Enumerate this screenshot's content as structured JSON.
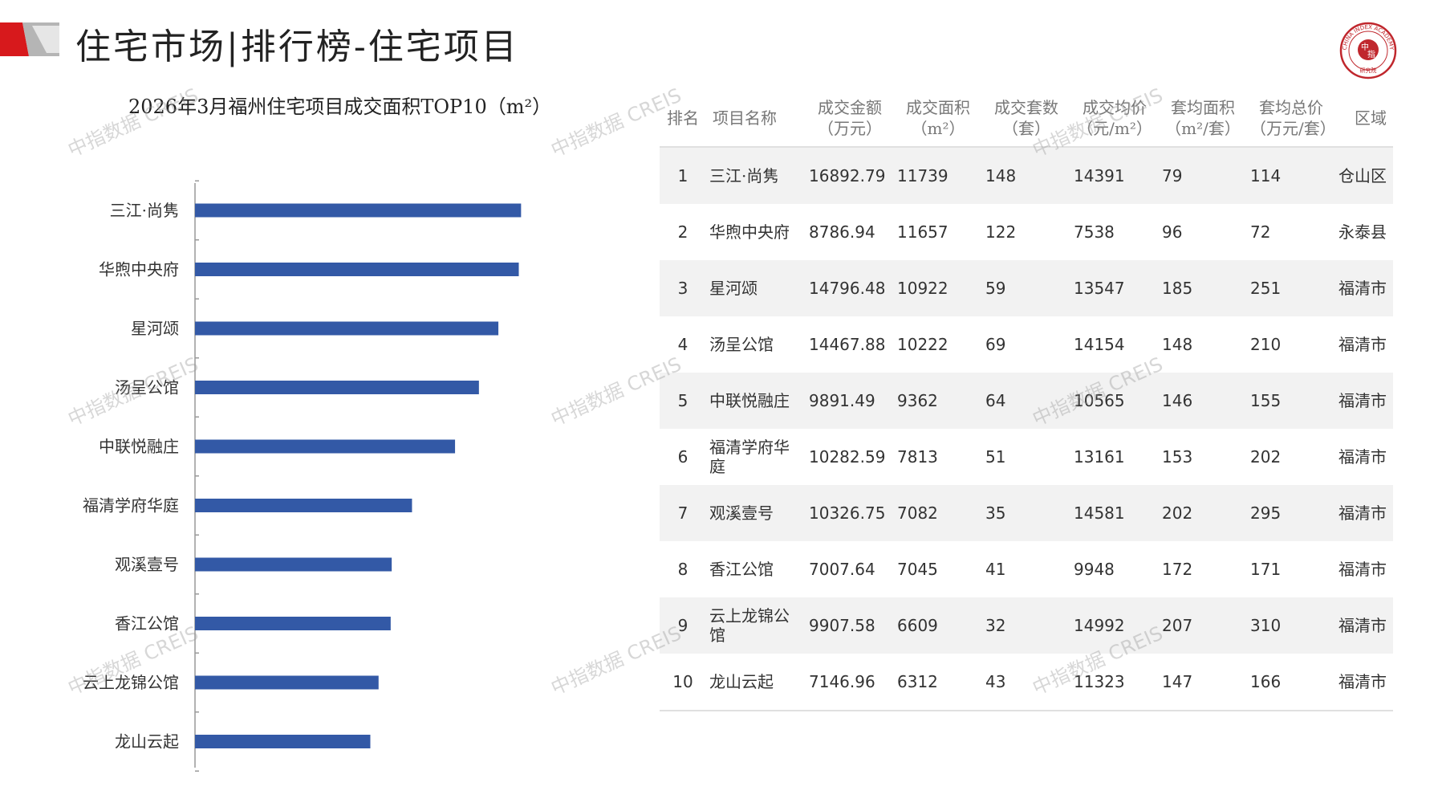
{
  "header": {
    "title": "住宅市场|排行榜-住宅项目"
  },
  "colors": {
    "bar": "#3359a6",
    "logo_red": "#d7191c",
    "logo_gray": "#b5b5b5",
    "seal_red": "#c0272d",
    "row_alt": "#f2f2f2"
  },
  "chart_data": {
    "type": "bar",
    "orientation": "horizontal",
    "title": "2026年3月福州住宅项目成交面积TOP10（m²）",
    "categories": [
      "三江·尚隽",
      "华煦中央府",
      "星河颂",
      "汤呈公馆",
      "中联悦融庄",
      "福清学府华庭",
      "观溪壹号",
      "香江公馆",
      "云上龙锦公馆",
      "龙山云起"
    ],
    "values": [
      11739,
      11657,
      10922,
      10222,
      9362,
      7813,
      7082,
      7045,
      6609,
      6312
    ],
    "xlim": [
      0,
      13000
    ],
    "grid": false,
    "legend": "none"
  },
  "table": {
    "headers": [
      [
        "排名"
      ],
      [
        "项目名称"
      ],
      [
        "成交金额",
        "（万元）"
      ],
      [
        "成交面积",
        "（m²）"
      ],
      [
        "成交套数",
        "（套）"
      ],
      [
        "成交均价",
        "（元/m²）"
      ],
      [
        "套均面积",
        "（m²/套）"
      ],
      [
        "套均总价",
        "（万元/套）"
      ],
      [
        "区域"
      ]
    ],
    "rows": [
      {
        "rank": "1",
        "name": "三江·尚隽",
        "amount": "16892.79",
        "area": "11739",
        "units": "148",
        "price": "14391",
        "avg_area": "79",
        "avg_total": "114",
        "district": "仓山区"
      },
      {
        "rank": "2",
        "name": "华煦中央府",
        "amount": "8786.94",
        "area": "11657",
        "units": "122",
        "price": "7538",
        "avg_area": "96",
        "avg_total": "72",
        "district": "永泰县"
      },
      {
        "rank": "3",
        "name": "星河颂",
        "amount": "14796.48",
        "area": "10922",
        "units": "59",
        "price": "13547",
        "avg_area": "185",
        "avg_total": "251",
        "district": "福清市"
      },
      {
        "rank": "4",
        "name": "汤呈公馆",
        "amount": "14467.88",
        "area": "10222",
        "units": "69",
        "price": "14154",
        "avg_area": "148",
        "avg_total": "210",
        "district": "福清市"
      },
      {
        "rank": "5",
        "name": "中联悦融庄",
        "amount": "9891.49",
        "area": "9362",
        "units": "64",
        "price": "10565",
        "avg_area": "146",
        "avg_total": "155",
        "district": "福清市"
      },
      {
        "rank": "6",
        "name": "福清学府华庭",
        "amount": "10282.59",
        "area": "7813",
        "units": "51",
        "price": "13161",
        "avg_area": "153",
        "avg_total": "202",
        "district": "福清市"
      },
      {
        "rank": "7",
        "name": "观溪壹号",
        "amount": "10326.75",
        "area": "7082",
        "units": "35",
        "price": "14581",
        "avg_area": "202",
        "avg_total": "295",
        "district": "福清市"
      },
      {
        "rank": "8",
        "name": "香江公馆",
        "amount": "7007.64",
        "area": "7045",
        "units": "41",
        "price": "9948",
        "avg_area": "172",
        "avg_total": "171",
        "district": "福清市"
      },
      {
        "rank": "9",
        "name": "云上龙锦公馆",
        "amount": "9907.58",
        "area": "6609",
        "units": "32",
        "price": "14992",
        "avg_area": "207",
        "avg_total": "310",
        "district": "福清市"
      },
      {
        "rank": "10",
        "name": "龙山云起",
        "amount": "7146.96",
        "area": "6312",
        "units": "43",
        "price": "11323",
        "avg_area": "147",
        "avg_total": "166",
        "district": "福清市"
      }
    ]
  },
  "watermark": "中指数据 CREIS",
  "seal": {
    "ring_text": "CHINA INDEX ACADEMY",
    "center_top": "中",
    "center_bottom": "指",
    "bottom_text": "研究院"
  }
}
